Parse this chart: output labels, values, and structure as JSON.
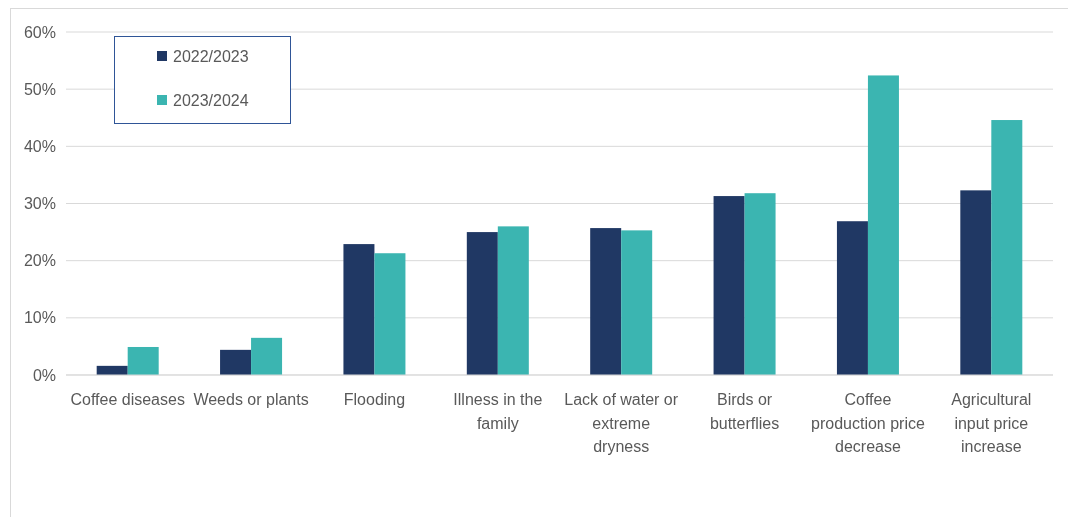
{
  "chart_data": {
    "type": "bar",
    "categories": [
      "Coffee diseases",
      "Weeds or plants",
      "Flooding",
      "Illness in the family",
      "Lack of water or extreme dryness",
      "Birds or butterflies",
      "Coffee production price decrease",
      "Agricultural input price increase"
    ],
    "series": [
      {
        "name": "2022/2023",
        "color": "#203864",
        "values": [
          1.6,
          4.4,
          22.9,
          25.0,
          25.7,
          31.3,
          26.9,
          32.3
        ]
      },
      {
        "name": "2023/2024",
        "color": "#3bb5b1",
        "values": [
          4.9,
          6.5,
          21.3,
          26.0,
          25.3,
          31.8,
          52.4,
          44.6
        ]
      }
    ],
    "ylim": [
      0,
      60
    ],
    "yticks": [
      {
        "value": 0,
        "label": "0%"
      },
      {
        "value": 10,
        "label": "10%"
      },
      {
        "value": 20,
        "label": "20%"
      },
      {
        "value": 30,
        "label": "30%"
      },
      {
        "value": 40,
        "label": "40%"
      },
      {
        "value": 50,
        "label": "50%"
      },
      {
        "value": 60,
        "label": "60%"
      }
    ],
    "grid": "y",
    "legend": "top left"
  }
}
